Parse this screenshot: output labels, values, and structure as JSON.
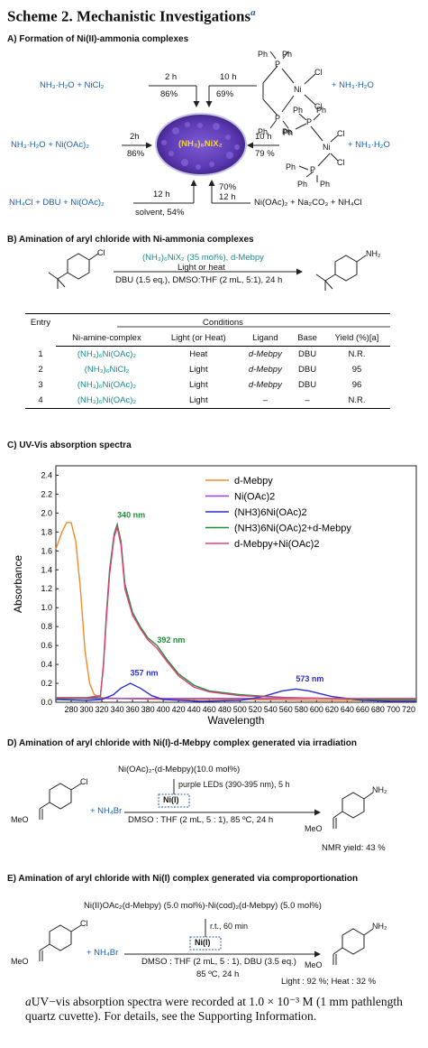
{
  "title": {
    "text": "Scheme 2. Mechanistic Investigations",
    "marker": "a"
  },
  "sectionA": {
    "heading": "A) Formation of Ni(II)-ammonia complexes",
    "r1_left": "NH₃·H₂O + NiCl₂",
    "r1_arrow1_top": "2 h",
    "r1_arrow1_bot": "86%",
    "r1_arrow2_top": "10 h",
    "r1_arrow2_bot": "69%",
    "r1_right": "+ NH₃·H₂O",
    "dppe_ph1": "Ph",
    "dppe_ph2": "Ph",
    "dppe_ph3": "Ph",
    "dppe_ph4": "Ph",
    "dppe_p": "P",
    "dppe_ni": "Ni",
    "dppe_cl1": "Cl",
    "dppe_cl2": "Cl",
    "r2_left": "NH₃·H₂O + Ni(OAc)₂",
    "r2_arrow_top": "2h",
    "r2_arrow_bot": "86%",
    "center_label": "(NH₃)₆NiX₂",
    "r2_right_top": "10 h",
    "r2_right_bot": "79 %",
    "r2_right": "+ NH₃·H₂O",
    "r3_left": "NH₄Cl + DBU + Ni(OAc)₂",
    "r3_arrow_top": "12 h",
    "r3_arrow_bot": "solvent, 54%",
    "r3_up_top": "70%",
    "r3_up_bot": "12 h",
    "r3_right": "Ni(OAc)₂ + Na₂CO₃ + NH₄Cl"
  },
  "sectionB": {
    "heading": "B) Amination of aryl chloride with Ni-ammonia complexes",
    "cond1": "(NH₃)₆NiX₂ (35 mol%), d-Mebpy",
    "cond2": "Light or heat",
    "cond3": "DBU (1.5 eq.), DMSO:THF (2 mL, 5:1), 24 h",
    "cl": "Cl",
    "nh2": "NH₂",
    "table": {
      "h_entry": "Entry",
      "h_conditions": "Conditions",
      "columns": [
        "Ni-amine-complex",
        "Light (or Heat)",
        "Ligand",
        "Base",
        "Yield (%)[a]"
      ],
      "rows": [
        [
          "1",
          "(NH₃)₆Ni(OAc)₂",
          "Heat",
          "d-Mebpy",
          "DBU",
          "N.R."
        ],
        [
          "2",
          "(NH₃)₆NiCl₂",
          "Light",
          "d-Mebpy",
          "DBU",
          "95"
        ],
        [
          "3",
          "(NH₃)₆Ni(OAc)₂",
          "Light",
          "d-Mebpy",
          "DBU",
          "96"
        ],
        [
          "4",
          "(NH₃)₆Ni(OAc)₂",
          "Light",
          "–",
          "–",
          "N.R."
        ]
      ]
    }
  },
  "sectionC": {
    "heading": "C) UV-Vis absorption spectra"
  },
  "chart_data": {
    "type": "line",
    "xlabel": "Wavelength",
    "ylabel": "Absorbance",
    "xlim": [
      260,
      730
    ],
    "ylim": [
      0,
      2.5
    ],
    "xticks": [
      280,
      300,
      320,
      340,
      360,
      380,
      400,
      420,
      440,
      460,
      480,
      500,
      520,
      540,
      560,
      580,
      600,
      620,
      640,
      660,
      680,
      700,
      720
    ],
    "yticks": [
      0.0,
      0.2,
      0.4,
      0.6,
      0.8,
      1.0,
      1.2,
      1.4,
      1.6,
      1.8,
      2.0,
      2.2,
      2.4
    ],
    "legend_position": "top-right",
    "series": [
      {
        "name": "d-Mebpy",
        "color": "#f08a2c",
        "x": [
          260,
          268,
          274,
          280,
          286,
          292,
          298,
          304,
          310,
          320,
          340,
          400,
          500,
          600,
          730
        ],
        "y": [
          1.62,
          1.8,
          1.9,
          1.9,
          1.7,
          1.2,
          0.55,
          0.2,
          0.08,
          0.05,
          0.04,
          0.03,
          0.03,
          0.02,
          0.02
        ]
      },
      {
        "name": "Ni(OAc)2",
        "color": "#9b3fd6",
        "x": [
          260,
          300,
          340,
          400,
          500,
          600,
          700,
          730
        ],
        "y": [
          0.04,
          0.04,
          0.04,
          0.04,
          0.04,
          0.04,
          0.03,
          0.03
        ]
      },
      {
        "name": "(NH3)6Ni(OAc)2",
        "color": "#2b2fd0",
        "x": [
          260,
          300,
          320,
          335,
          345,
          357,
          370,
          385,
          400,
          450,
          500,
          530,
          555,
          573,
          590,
          620,
          660,
          700,
          730
        ],
        "y": [
          0.03,
          0.02,
          0.03,
          0.08,
          0.15,
          0.2,
          0.15,
          0.07,
          0.03,
          0.01,
          0.02,
          0.06,
          0.12,
          0.14,
          0.12,
          0.06,
          0.02,
          0.01,
          0.01
        ]
      },
      {
        "name": "(NH3)6Ni(OAc)2+d-Mebpy",
        "color": "#1f8f3a",
        "x": [
          260,
          300,
          318,
          322,
          326,
          330,
          336,
          340,
          345,
          350,
          360,
          370,
          380,
          392,
          405,
          420,
          440,
          460,
          500,
          560,
          620,
          680,
          730
        ],
        "y": [
          0.04,
          0.04,
          0.06,
          0.4,
          0.95,
          1.4,
          1.78,
          1.88,
          1.7,
          1.25,
          0.95,
          0.8,
          0.68,
          0.6,
          0.45,
          0.3,
          0.18,
          0.12,
          0.08,
          0.05,
          0.04,
          0.03,
          0.03
        ]
      },
      {
        "name": "d-Mebpy+Ni(OAc)2",
        "color": "#e0407a",
        "x": [
          260,
          300,
          318,
          322,
          326,
          330,
          336,
          340,
          345,
          350,
          360,
          370,
          380,
          392,
          405,
          420,
          440,
          460,
          500,
          560,
          620,
          680,
          730
        ],
        "y": [
          0.05,
          0.05,
          0.07,
          0.38,
          0.9,
          1.35,
          1.75,
          1.85,
          1.66,
          1.2,
          0.92,
          0.78,
          0.66,
          0.57,
          0.43,
          0.28,
          0.16,
          0.11,
          0.07,
          0.05,
          0.04,
          0.04,
          0.04
        ]
      }
    ],
    "annotations": [
      {
        "text": "340 nm",
        "x": 340,
        "y": 1.95,
        "color": "#1f8f3a"
      },
      {
        "text": "392 nm",
        "x": 392,
        "y": 0.63,
        "color": "#1f8f3a"
      },
      {
        "text": "357 nm",
        "x": 357,
        "y": 0.28,
        "color": "#2b2fd0"
      },
      {
        "text": "573 nm",
        "x": 573,
        "y": 0.22,
        "color": "#2b2fd0"
      }
    ]
  },
  "sectionD": {
    "heading": "D) Amination of aryl chloride with Ni(I)-d-Mebpy complex generated via irradiation",
    "cat": "Ni(OAc)₂-(d-Mebpy)(10.0 mol%)",
    "leds": "purple LEDs (390-395 nm), 5 h",
    "nii": "Ni(I)",
    "meo": "MeO",
    "plus": "+ NH₄Br",
    "cond": "DMSO : THF (2 mL, 5 : 1), 85 ºC, 24 h",
    "cl": "Cl",
    "nh2": "NH₂",
    "yield": "NMR yield: 43 %"
  },
  "sectionE": {
    "heading": "E) Amination of aryl chloride with Ni(I) complex generated via comproportionation",
    "cat": "Ni(II)OAc₂(d-Mebpy) (5.0 mol%)-Ni(cod)₂(d-Mebpy) (5.0 mol%)",
    "rt": "r.t., 60 min",
    "nii": "Ni(I)",
    "meo": "MeO",
    "plus": "+ NH₄Br",
    "cond1": "DMSO : THF (2 mL, 5 : 1), DBU (3.5 eq.)",
    "cond2": "85 ºC, 24 h",
    "cl": "Cl",
    "nh2": "NH₂",
    "yield": "Light : 92 %; Heat : 32 %"
  },
  "footnote": {
    "marker": "a",
    "text": "UV−vis absorption spectra were recorded at 1.0 × 10⁻³ M (1 mm pathlength quartz cuvette). For details, see the Supporting Information."
  }
}
